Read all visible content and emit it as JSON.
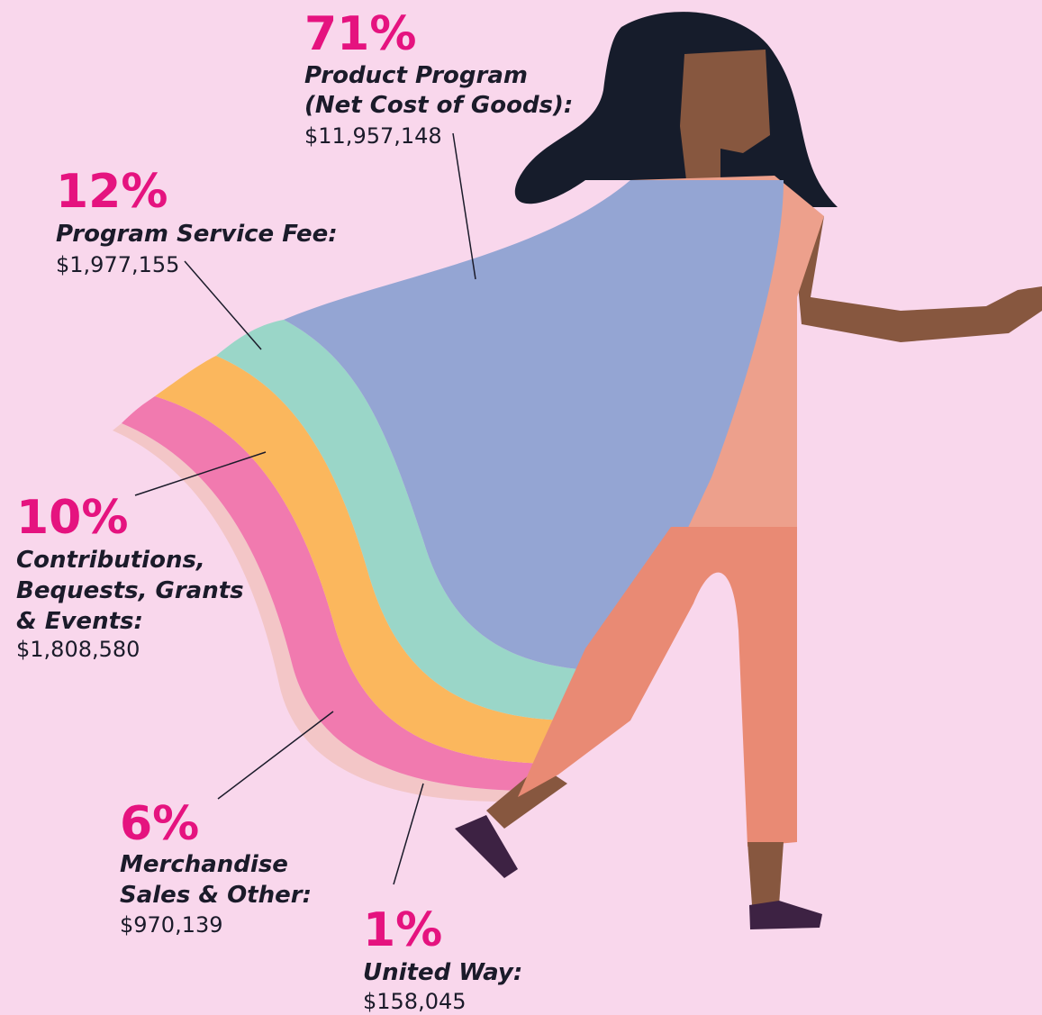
{
  "items": [
    {
      "percent": "71%",
      "label": [
        "Product Program",
        "(Net Cost of Goods):"
      ],
      "amount": "$11,957,148"
    },
    {
      "percent": "12%",
      "label": [
        "Program Service Fee:"
      ],
      "amount": "$1,977,155"
    },
    {
      "percent": "10%",
      "label": [
        "Contributions,",
        "Bequests, Grants",
        "& Events:"
      ],
      "amount": "$1,808,580"
    },
    {
      "percent": "6%",
      "label": [
        "Merchandise",
        "Sales & Other:"
      ],
      "amount": "$970,139"
    },
    {
      "percent": "1%",
      "label": [
        "United Way:"
      ],
      "amount": "$158,045"
    }
  ]
}
